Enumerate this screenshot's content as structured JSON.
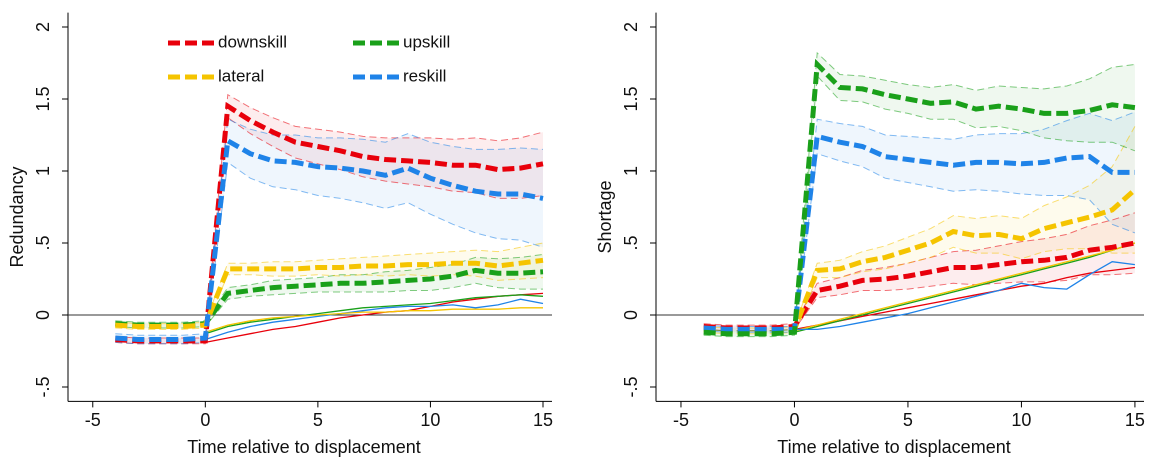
{
  "chart_data": [
    {
      "type": "line",
      "ylabel": "Redundancy",
      "xlabel": "Time relative to displacement",
      "xlim": [
        -6.1,
        15.4
      ],
      "xticks": [
        -5,
        0,
        5,
        10,
        15
      ],
      "ylim": [
        -0.6,
        2.1
      ],
      "yticks": [
        {
          "value": -0.5,
          "label": "-.5"
        },
        0,
        {
          "value": 0.5,
          "label": ".5"
        },
        1,
        1.5,
        2
      ],
      "refline": 0,
      "legend": true,
      "x": [
        -4,
        -3,
        -2,
        -1,
        0,
        1,
        2,
        3,
        4,
        5,
        6,
        7,
        8,
        9,
        10,
        11,
        12,
        13,
        14,
        15
      ],
      "series": [
        {
          "style": "thin",
          "color": "#e8000b",
          "values": [
            null,
            null,
            null,
            null,
            -0.19,
            -0.16,
            -0.13,
            -0.1,
            -0.08,
            -0.05,
            -0.02,
            0.0,
            0.02,
            0.03,
            0.06,
            0.09,
            0.11,
            0.13,
            0.14,
            0.15
          ]
        },
        {
          "style": "thin",
          "color": "#1f83e8",
          "values": [
            null,
            null,
            null,
            null,
            -0.17,
            -0.12,
            -0.08,
            -0.05,
            -0.03,
            -0.01,
            0.01,
            0.03,
            0.05,
            0.06,
            0.06,
            0.07,
            0.05,
            0.07,
            0.11,
            0.08
          ]
        },
        {
          "style": "thin",
          "color": "#1aa01a",
          "values": [
            null,
            null,
            null,
            null,
            -0.13,
            -0.08,
            -0.05,
            -0.03,
            -0.01,
            0.01,
            0.03,
            0.05,
            0.06,
            0.07,
            0.08,
            0.1,
            0.12,
            0.13,
            0.14,
            0.13
          ]
        },
        {
          "style": "thin",
          "color": "#f5c400",
          "values": [
            null,
            null,
            null,
            null,
            -0.12,
            -0.07,
            -0.04,
            -0.02,
            -0.01,
            0.0,
            0.01,
            0.02,
            0.02,
            0.03,
            0.03,
            0.04,
            0.04,
            0.04,
            0.05,
            0.05
          ]
        },
        {
          "name": "downskill",
          "style": "dashed",
          "color": "#e8000b",
          "values": [
            -0.17,
            -0.18,
            -0.18,
            -0.18,
            -0.18,
            1.45,
            1.35,
            1.27,
            1.2,
            1.17,
            1.14,
            1.1,
            1.08,
            1.07,
            1.06,
            1.04,
            1.04,
            1.01,
            1.02,
            1.05
          ],
          "lower": [
            -0.19,
            -0.2,
            -0.2,
            -0.2,
            -0.2,
            1.37,
            1.26,
            1.17,
            1.09,
            1.05,
            1.01,
            0.96,
            0.93,
            0.91,
            0.89,
            0.86,
            0.85,
            0.81,
            0.81,
            0.83
          ],
          "upper": [
            -0.15,
            -0.16,
            -0.16,
            -0.16,
            -0.16,
            1.53,
            1.44,
            1.37,
            1.31,
            1.29,
            1.27,
            1.24,
            1.23,
            1.23,
            1.23,
            1.22,
            1.23,
            1.21,
            1.23,
            1.27
          ]
        },
        {
          "name": "upskill",
          "style": "dashed",
          "color": "#1aa01a",
          "values": [
            -0.06,
            -0.07,
            -0.07,
            -0.07,
            -0.06,
            0.15,
            0.17,
            0.19,
            0.2,
            0.21,
            0.22,
            0.22,
            0.23,
            0.24,
            0.25,
            0.27,
            0.31,
            0.29,
            0.29,
            0.3
          ],
          "lower": [
            -0.08,
            -0.09,
            -0.09,
            -0.09,
            -0.08,
            0.11,
            0.13,
            0.14,
            0.15,
            0.16,
            0.16,
            0.16,
            0.16,
            0.17,
            0.17,
            0.19,
            0.22,
            0.19,
            0.18,
            0.18
          ],
          "upper": [
            -0.04,
            -0.05,
            -0.05,
            -0.05,
            -0.04,
            0.19,
            0.21,
            0.24,
            0.25,
            0.26,
            0.28,
            0.28,
            0.3,
            0.31,
            0.33,
            0.35,
            0.4,
            0.39,
            0.4,
            0.42
          ]
        },
        {
          "name": "lateral",
          "style": "dashed",
          "color": "#f5c400",
          "values": [
            -0.07,
            -0.08,
            -0.08,
            -0.08,
            -0.07,
            0.32,
            0.32,
            0.32,
            0.32,
            0.33,
            0.33,
            0.34,
            0.34,
            0.35,
            0.35,
            0.36,
            0.36,
            0.34,
            0.36,
            0.38
          ],
          "lower": [
            -0.09,
            -0.1,
            -0.1,
            -0.1,
            -0.09,
            0.28,
            0.28,
            0.27,
            0.27,
            0.28,
            0.27,
            0.28,
            0.27,
            0.28,
            0.27,
            0.28,
            0.27,
            0.24,
            0.25,
            0.26
          ],
          "upper": [
            -0.05,
            -0.06,
            -0.06,
            -0.06,
            -0.05,
            0.36,
            0.36,
            0.37,
            0.37,
            0.38,
            0.39,
            0.4,
            0.41,
            0.42,
            0.43,
            0.44,
            0.45,
            0.44,
            0.47,
            0.5
          ]
        },
        {
          "name": "reskill",
          "style": "dashed",
          "color": "#1f83e8",
          "values": [
            -0.16,
            -0.17,
            -0.17,
            -0.17,
            -0.16,
            1.21,
            1.12,
            1.07,
            1.06,
            1.03,
            1.02,
            1.0,
            0.97,
            1.02,
            0.95,
            0.9,
            0.86,
            0.84,
            0.84,
            0.81
          ],
          "lower": [
            -0.19,
            -0.2,
            -0.2,
            -0.2,
            -0.19,
            1.06,
            0.95,
            0.89,
            0.87,
            0.83,
            0.81,
            0.78,
            0.74,
            0.78,
            0.7,
            0.63,
            0.57,
            0.53,
            0.52,
            0.47
          ],
          "upper": [
            -0.13,
            -0.14,
            -0.14,
            -0.14,
            -0.13,
            1.36,
            1.29,
            1.25,
            1.25,
            1.23,
            1.23,
            1.22,
            1.2,
            1.26,
            1.2,
            1.17,
            1.15,
            1.15,
            1.16,
            1.15
          ]
        }
      ]
    },
    {
      "type": "line",
      "ylabel": "Shortage",
      "xlabel": "Time relative to displacement",
      "xlim": [
        -6.1,
        15.4
      ],
      "xticks": [
        -5,
        0,
        5,
        10,
        15
      ],
      "ylim": [
        -0.6,
        2.1
      ],
      "yticks": [
        {
          "value": -0.5,
          "label": "-.5"
        },
        0,
        {
          "value": 0.5,
          "label": ".5"
        },
        1,
        1.5,
        2
      ],
      "refline": 0,
      "legend": false,
      "x": [
        -4,
        -3,
        -2,
        -1,
        0,
        1,
        2,
        3,
        4,
        5,
        6,
        7,
        8,
        9,
        10,
        11,
        12,
        13,
        14,
        15
      ],
      "series": [
        {
          "style": "thin",
          "color": "#e8000b",
          "values": [
            null,
            null,
            null,
            null,
            -0.1,
            -0.07,
            -0.04,
            -0.01,
            0.02,
            0.05,
            0.08,
            0.11,
            0.14,
            0.17,
            0.2,
            0.22,
            0.26,
            0.29,
            0.31,
            0.33
          ]
        },
        {
          "style": "thin",
          "color": "#1aa01a",
          "values": [
            null,
            null,
            null,
            null,
            -0.12,
            -0.08,
            -0.04,
            0.0,
            0.04,
            0.08,
            0.12,
            0.16,
            0.2,
            0.24,
            0.28,
            0.32,
            0.36,
            0.4,
            0.45,
            0.5
          ]
        },
        {
          "style": "thin",
          "color": "#f5c400",
          "values": [
            null,
            null,
            null,
            null,
            -0.11,
            -0.07,
            -0.03,
            0.01,
            0.05,
            0.09,
            0.13,
            0.17,
            0.21,
            0.25,
            0.29,
            0.33,
            0.37,
            0.41,
            0.45,
            0.5
          ]
        },
        {
          "style": "thin",
          "color": "#1f83e8",
          "values": [
            null,
            null,
            null,
            null,
            -0.1,
            -0.1,
            -0.08,
            -0.05,
            -0.02,
            0.01,
            0.05,
            0.09,
            0.13,
            0.17,
            0.22,
            0.19,
            0.18,
            0.28,
            0.37,
            0.35
          ]
        },
        {
          "style": "dashed",
          "color": "#e8000b",
          "values": [
            -0.08,
            -0.09,
            -0.09,
            -0.09,
            -0.08,
            0.17,
            0.2,
            0.24,
            0.25,
            0.27,
            0.3,
            0.33,
            0.33,
            0.35,
            0.37,
            0.38,
            0.4,
            0.45,
            0.47,
            0.5
          ],
          "lower": [
            -0.1,
            -0.11,
            -0.11,
            -0.11,
            -0.1,
            0.12,
            0.14,
            0.17,
            0.17,
            0.18,
            0.2,
            0.22,
            0.21,
            0.22,
            0.23,
            0.23,
            0.24,
            0.28,
            0.28,
            0.29
          ],
          "upper": [
            -0.06,
            -0.07,
            -0.07,
            -0.07,
            -0.06,
            0.22,
            0.26,
            0.31,
            0.33,
            0.36,
            0.4,
            0.44,
            0.45,
            0.48,
            0.51,
            0.53,
            0.56,
            0.62,
            0.66,
            0.71
          ]
        },
        {
          "style": "dashed",
          "color": "#f5c400",
          "values": [
            -0.1,
            -0.11,
            -0.11,
            -0.11,
            -0.1,
            0.31,
            0.32,
            0.37,
            0.4,
            0.45,
            0.5,
            0.58,
            0.55,
            0.56,
            0.53,
            0.6,
            0.64,
            0.68,
            0.73,
            0.87
          ],
          "lower": [
            -0.12,
            -0.13,
            -0.13,
            -0.13,
            -0.12,
            0.26,
            0.26,
            0.3,
            0.32,
            0.36,
            0.4,
            0.47,
            0.43,
            0.43,
            0.39,
            0.44,
            0.46,
            0.46,
            0.43,
            0.43
          ],
          "upper": [
            -0.08,
            -0.09,
            -0.09,
            -0.09,
            -0.08,
            0.36,
            0.38,
            0.44,
            0.48,
            0.54,
            0.6,
            0.69,
            0.67,
            0.69,
            0.67,
            0.76,
            0.82,
            0.9,
            1.03,
            1.31
          ]
        },
        {
          "style": "dashed",
          "color": "#1f83e8",
          "values": [
            -0.09,
            -0.1,
            -0.1,
            -0.1,
            -0.1,
            1.24,
            1.2,
            1.17,
            1.1,
            1.08,
            1.06,
            1.04,
            1.06,
            1.06,
            1.05,
            1.06,
            1.09,
            1.1,
            0.99,
            0.99
          ],
          "lower": [
            -0.11,
            -0.12,
            -0.12,
            -0.12,
            -0.12,
            1.12,
            1.07,
            1.03,
            0.95,
            0.92,
            0.89,
            0.86,
            0.87,
            0.86,
            0.84,
            0.83,
            0.83,
            0.8,
            0.63,
            0.57
          ],
          "upper": [
            -0.07,
            -0.08,
            -0.08,
            -0.08,
            -0.08,
            1.36,
            1.33,
            1.31,
            1.25,
            1.24,
            1.23,
            1.22,
            1.25,
            1.26,
            1.26,
            1.29,
            1.35,
            1.4,
            1.35,
            1.41
          ]
        },
        {
          "style": "dashed",
          "color": "#1aa01a",
          "values": [
            -0.12,
            -0.13,
            -0.13,
            -0.13,
            -0.12,
            1.74,
            1.58,
            1.57,
            1.53,
            1.5,
            1.47,
            1.48,
            1.43,
            1.45,
            1.43,
            1.4,
            1.4,
            1.42,
            1.46,
            1.44
          ],
          "lower": [
            -0.14,
            -0.15,
            -0.15,
            -0.15,
            -0.14,
            1.66,
            1.49,
            1.48,
            1.43,
            1.4,
            1.36,
            1.36,
            1.3,
            1.31,
            1.28,
            1.23,
            1.21,
            1.2,
            1.2,
            1.14
          ],
          "upper": [
            -0.1,
            -0.11,
            -0.11,
            -0.11,
            -0.1,
            1.82,
            1.67,
            1.66,
            1.63,
            1.6,
            1.58,
            1.6,
            1.56,
            1.59,
            1.58,
            1.57,
            1.59,
            1.64,
            1.72,
            1.74
          ]
        }
      ]
    }
  ]
}
